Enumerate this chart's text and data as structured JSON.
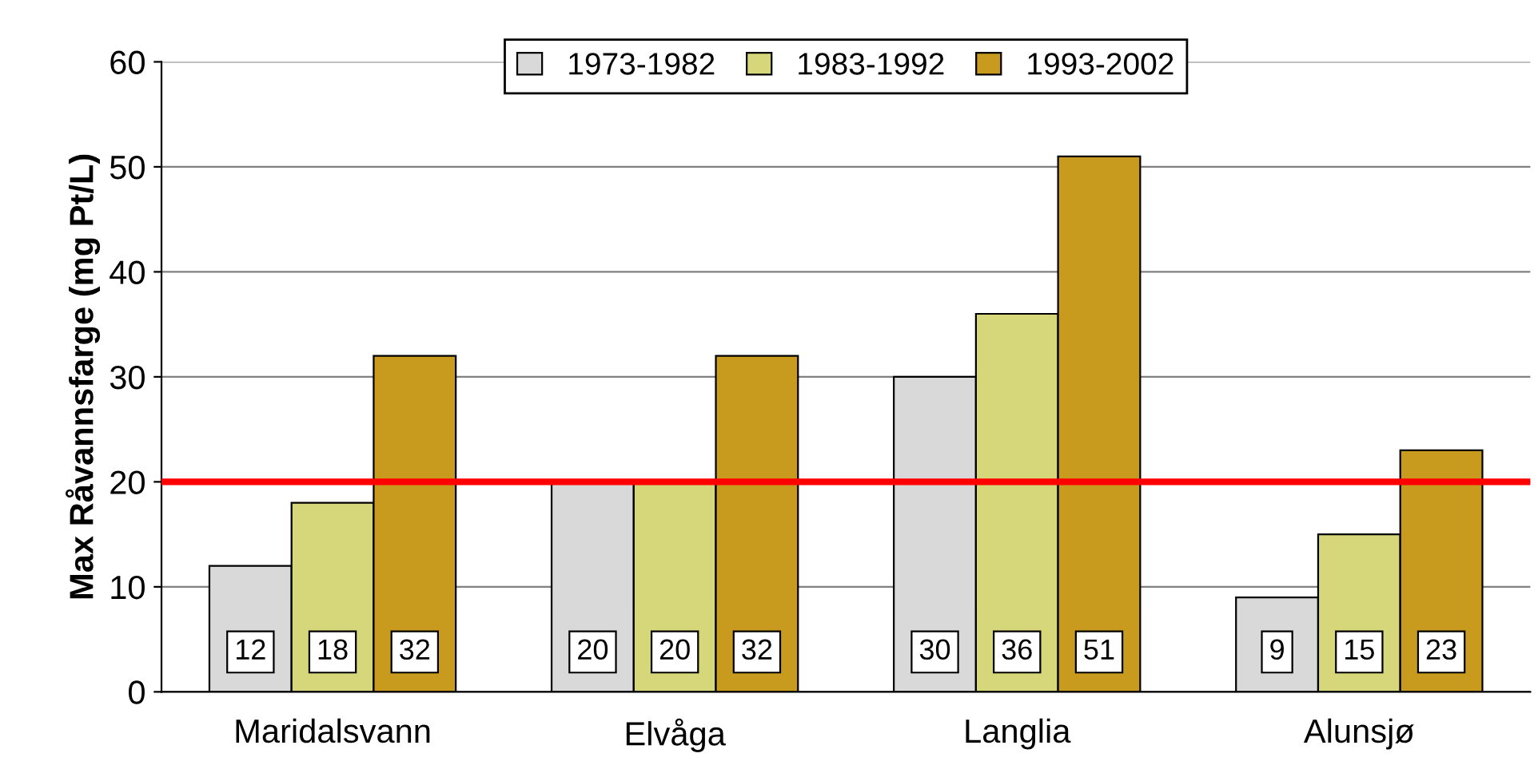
{
  "chart_data": {
    "type": "bar",
    "ylabel": "Max Råvannsfarge (mg Pt/L)",
    "categories": [
      "Maridalsvann",
      "Elvåga",
      "Langlia",
      "Alunsjø"
    ],
    "series": [
      {
        "name": "1973-1982",
        "color": "#d9d9d9",
        "values": [
          12,
          20,
          30,
          9
        ]
      },
      {
        "name": "1983-1992",
        "color": "#d6d67a",
        "values": [
          18,
          20,
          36,
          15
        ]
      },
      {
        "name": "1993-2002",
        "color": "#c89a1e",
        "values": [
          32,
          32,
          51,
          23
        ]
      }
    ],
    "ylim": [
      0,
      60
    ],
    "yticks": [
      0,
      10,
      20,
      30,
      40,
      50,
      60
    ],
    "grid": "y",
    "legend": "top",
    "data_labels": true,
    "ref_lines": [
      {
        "axis": "y",
        "value": 20,
        "color": "#ff0000"
      }
    ]
  }
}
